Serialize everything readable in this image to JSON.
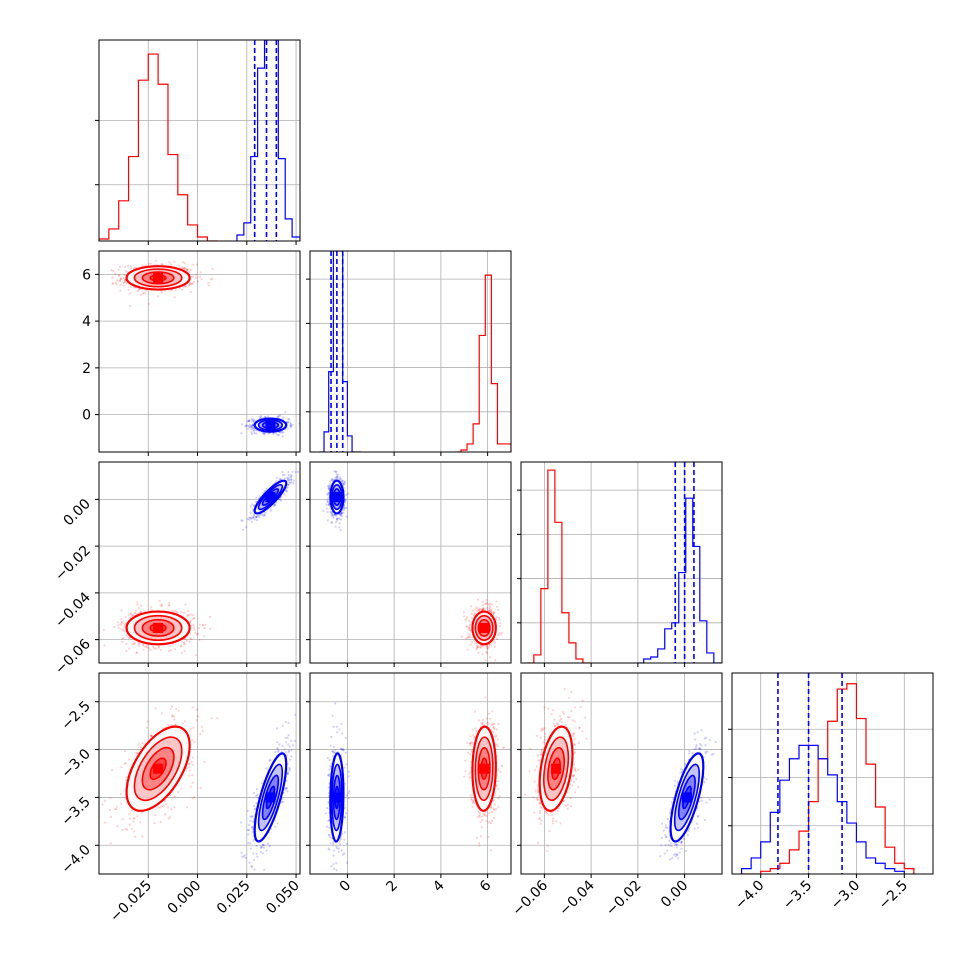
{
  "chart_data": {
    "type": "corner",
    "grid": true,
    "colors": {
      "red": "#ff0000",
      "blue": "#0000ff"
    },
    "parameters": [
      {
        "range": [
          -0.05,
          0.052
        ],
        "ticks": [
          -0.025,
          0.0,
          0.025,
          0.05
        ],
        "tick_labels": [
          "−0.025",
          "0.000",
          "0.025",
          "0.050"
        ]
      },
      {
        "range": [
          -1.6,
          7.0
        ],
        "ticks": [
          0,
          2,
          4,
          6
        ],
        "tick_labels": [
          "0",
          "2",
          "4",
          "6"
        ]
      },
      {
        "range": [
          -0.07,
          0.016
        ],
        "ticks": [
          -0.06,
          -0.04,
          -0.02,
          0.0
        ],
        "tick_labels": [
          "−0.06",
          "−0.04",
          "−0.02",
          "0.00"
        ]
      },
      {
        "range": [
          -4.3,
          -2.2
        ],
        "ticks": [
          -4.0,
          -3.5,
          -3.0,
          -2.5
        ],
        "tick_labels": [
          "−4.0",
          "−3.5",
          "−3.0",
          "−2.5"
        ]
      }
    ],
    "series": [
      {
        "color": "red",
        "means": [
          -0.02,
          5.85,
          -0.055,
          -3.2
        ],
        "sigmas": [
          0.008,
          0.25,
          0.0035,
          0.22
        ],
        "correlations": {
          "0_3": 0.55,
          "2_3": 0.35,
          "1_3": 0.05
        },
        "histograms": [
          {
            "edges": [
              -0.05,
              -0.045,
              -0.04,
              -0.035,
              -0.03,
              -0.025,
              -0.02,
              -0.015,
              -0.01,
              -0.005,
              0.0,
              0.005,
              0.01
            ],
            "counts": [
              0.01,
              0.06,
              0.2,
              0.42,
              0.8,
              0.93,
              0.78,
              0.43,
              0.23,
              0.08,
              0.02,
              0.0
            ]
          },
          {
            "edges": [
              4.6,
              4.86,
              5.12,
              5.38,
              5.64,
              5.9,
              6.16,
              6.42,
              6.68,
              7.0
            ],
            "counts": [
              0.0,
              0.01,
              0.04,
              0.14,
              0.58,
              0.88,
              0.34,
              0.04,
              0.04
            ]
          },
          {
            "edges": [
              -0.0675,
              -0.0645,
              -0.0615,
              -0.0585,
              -0.0555,
              -0.0525,
              -0.0495,
              -0.0465,
              -0.0435,
              -0.0405
            ],
            "counts": [
              0.0,
              0.04,
              0.37,
              0.96,
              0.7,
              0.25,
              0.1,
              0.02,
              0.0
            ]
          },
          {
            "edges": [
              -4.2,
              -4.1,
              -4.0,
              -3.9,
              -3.8,
              -3.7,
              -3.6,
              -3.5,
              -3.4,
              -3.3,
              -3.2,
              -3.1,
              -3.0,
              -2.9,
              -2.8,
              -2.7,
              -2.6,
              -2.5,
              -2.4
            ],
            "counts": [
              0.0,
              0.0,
              0.01,
              0.02,
              0.04,
              0.09,
              0.16,
              0.27,
              0.43,
              0.57,
              0.69,
              0.71,
              0.58,
              0.41,
              0.25,
              0.1,
              0.04,
              0.02
            ]
          }
        ]
      },
      {
        "color": "blue",
        "means": [
          0.037,
          -0.45,
          0.001,
          -3.5
        ],
        "sigmas": [
          0.004,
          0.14,
          0.0035,
          0.23
        ],
        "correlations": {
          "0_2": 0.85,
          "0_3": 0.75,
          "1_3": 0.1,
          "2_3": 0.7,
          "0_1": 0.0,
          "1_2": 0.0
        },
        "quantiles": [
          [
            0.029,
            0.035,
            0.04
          ],
          [
            -0.7,
            -0.45,
            -0.2
          ],
          [
            -0.004,
            0.0,
            0.004
          ],
          [
            -3.82,
            -3.5,
            -3.15
          ]
        ],
        "histograms": [
          {
            "edges": [
              0.02,
              0.0235,
              0.027,
              0.0305,
              0.034,
              0.0375,
              0.041,
              0.0445,
              0.048,
              0.052
            ],
            "counts": [
              0.03,
              0.09,
              0.42,
              0.86,
              1.0,
              1.0,
              0.41,
              0.11,
              0.02
            ]
          },
          {
            "edges": [
              -1.2,
              -1.0,
              -0.8,
              -0.6,
              -0.4,
              -0.2,
              0.0,
              0.2,
              0.4,
              0.6
            ],
            "counts": [
              0.0,
              0.1,
              0.4,
              1.0,
              1.0,
              0.35,
              0.08,
              0.0,
              0.0
            ]
          },
          {
            "edges": [
              -0.0205,
              -0.0175,
              -0.0145,
              -0.0115,
              -0.0085,
              -0.0055,
              -0.0025,
              0.0005,
              0.0035,
              0.0065,
              0.0095,
              0.0125,
              0.016
            ],
            "counts": [
              0.0,
              0.02,
              0.03,
              0.07,
              0.17,
              0.2,
              0.45,
              0.82,
              0.58,
              0.21,
              0.05,
              0.0
            ]
          },
          {
            "edges": [
              -4.2,
              -4.1,
              -4.0,
              -3.9,
              -3.8,
              -3.7,
              -3.6,
              -3.5,
              -3.4,
              -3.3,
              -3.2,
              -3.1,
              -3.0,
              -2.9,
              -2.8,
              -2.7,
              -2.6,
              -2.5
            ],
            "counts": [
              0.02,
              0.06,
              0.12,
              0.23,
              0.35,
              0.43,
              0.48,
              0.48,
              0.43,
              0.37,
              0.27,
              0.19,
              0.12,
              0.06,
              0.04,
              0.02,
              0.01
            ]
          }
        ]
      }
    ],
    "hist_ticks": [
      {
        "range": [
          0,
          1.0
        ],
        "ticks": [
          0.28,
          0.6
        ]
      },
      {
        "range": [
          0,
          1.0
        ],
        "ticks": [
          0.2,
          0.42,
          0.64,
          0.86
        ]
      },
      {
        "range": [
          0,
          1.0
        ],
        "ticks": [
          0.2,
          0.42,
          0.64,
          0.86
        ]
      },
      {
        "range": [
          0,
          0.75
        ],
        "ticks": [
          0.18,
          0.36,
          0.54
        ]
      }
    ]
  }
}
